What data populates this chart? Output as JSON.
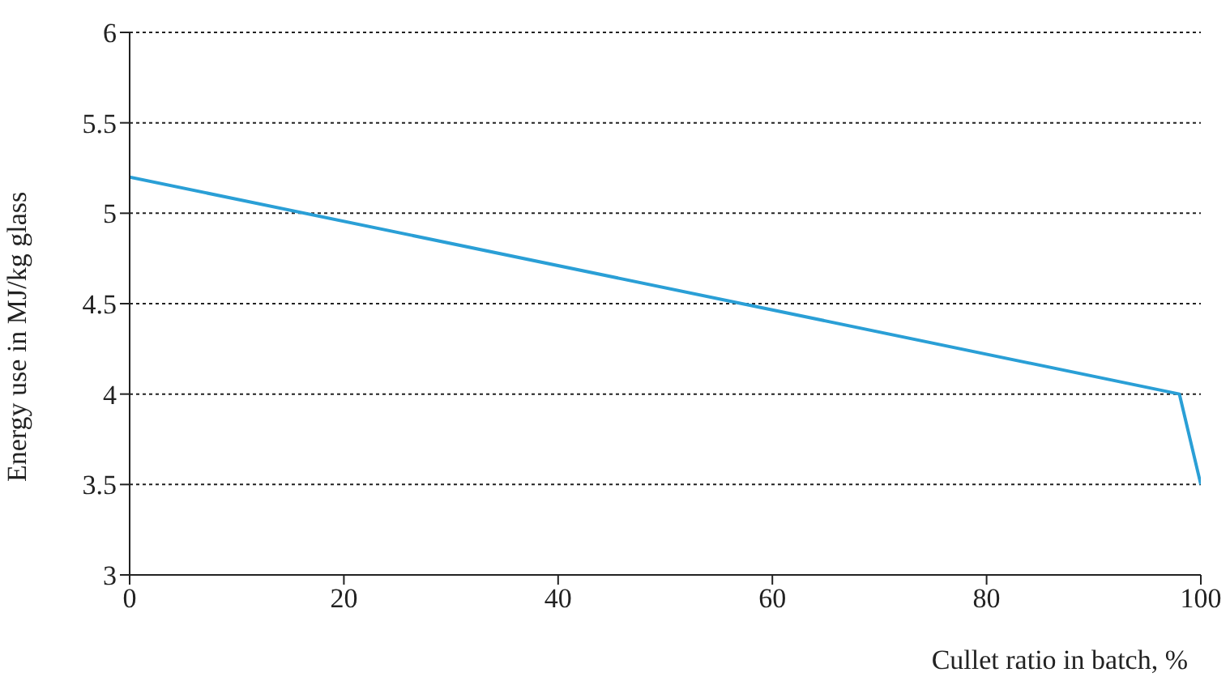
{
  "chart_data": {
    "type": "line",
    "xlabel": "Cullet ratio in batch, %",
    "ylabel": "Energy use in MJ/kg glass",
    "x": [
      0,
      98,
      100
    ],
    "series": [
      {
        "color": "#2a9fd6",
        "values": [
          5.2,
          4.0,
          3.5
        ]
      }
    ],
    "xlim": [
      0,
      100
    ],
    "xticks": [
      0,
      20,
      40,
      60,
      80,
      100
    ],
    "ylim": [
      3,
      6
    ],
    "yticks": [
      3,
      3.5,
      4,
      4.5,
      5,
      5.5,
      6
    ],
    "grid": "y",
    "legend": false,
    "marker": "none",
    "line_style": "solid"
  }
}
